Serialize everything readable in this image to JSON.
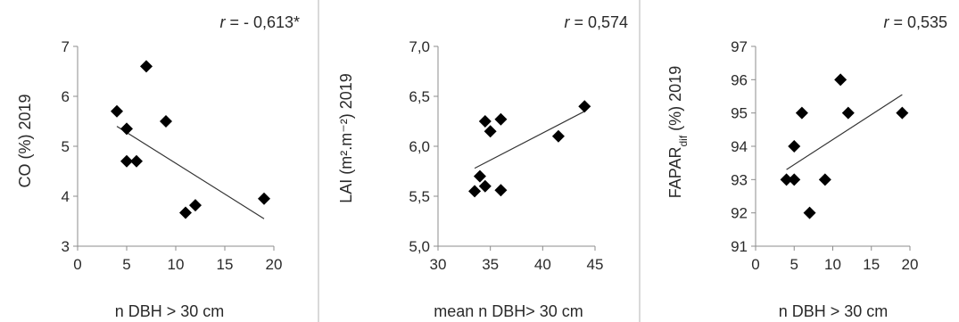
{
  "chart_data": [
    {
      "type": "scatter",
      "ylabel": "CO (%) 2019",
      "xlabel": "n DBH > 30 cm",
      "r_prefix": "r",
      "r_value": " = - 0,613*",
      "xlim": [
        0,
        20
      ],
      "ylim": [
        3,
        7
      ],
      "xticks": [
        0,
        5,
        10,
        15,
        20
      ],
      "xtick_labels": [
        "0",
        "5",
        "10",
        "15",
        "20"
      ],
      "yticks": [
        3,
        4,
        5,
        6,
        7
      ],
      "ytick_labels": [
        "3",
        "4",
        "5",
        "6",
        "7"
      ],
      "points": [
        {
          "x": 4,
          "y": 5.7
        },
        {
          "x": 5,
          "y": 5.35
        },
        {
          "x": 5,
          "y": 4.7
        },
        {
          "x": 6,
          "y": 4.7
        },
        {
          "x": 7,
          "y": 6.6
        },
        {
          "x": 9,
          "y": 5.5
        },
        {
          "x": 11,
          "y": 3.67
        },
        {
          "x": 12,
          "y": 3.82
        },
        {
          "x": 19,
          "y": 3.95
        }
      ],
      "trendline": {
        "x": [
          4,
          19
        ],
        "y": [
          5.4,
          3.55
        ]
      }
    },
    {
      "type": "scatter",
      "ylabel": "LAI (m².m⁻²) 2019",
      "xlabel": "mean n DBH> 30 cm",
      "r_prefix": "r",
      "r_value": " = 0,574",
      "xlim": [
        30,
        45
      ],
      "ylim": [
        5.0,
        7.0
      ],
      "xticks": [
        30,
        35,
        40,
        45
      ],
      "xtick_labels": [
        "30",
        "35",
        "40",
        "45"
      ],
      "yticks": [
        5.0,
        5.5,
        6.0,
        6.5,
        7.0
      ],
      "ytick_labels": [
        "5,0",
        "5,5",
        "6,0",
        "6,5",
        "7,0"
      ],
      "points": [
        {
          "x": 33.5,
          "y": 5.55
        },
        {
          "x": 34,
          "y": 5.7
        },
        {
          "x": 34.5,
          "y": 5.6
        },
        {
          "x": 34.5,
          "y": 6.25
        },
        {
          "x": 35,
          "y": 6.15
        },
        {
          "x": 36,
          "y": 6.27
        },
        {
          "x": 36,
          "y": 5.56
        },
        {
          "x": 41.5,
          "y": 6.1
        },
        {
          "x": 44,
          "y": 6.4
        }
      ],
      "trendline": {
        "x": [
          33.5,
          44
        ],
        "y": [
          5.78,
          6.35
        ]
      }
    },
    {
      "type": "scatter",
      "ylabel_main": "FAPAR",
      "ylabel_sub": "dif",
      "ylabel_rest": " (%) 2019",
      "xlabel": "n DBH > 30 cm",
      "r_prefix": "r",
      "r_value": " = 0,535",
      "xlim": [
        0,
        20
      ],
      "ylim": [
        91,
        97
      ],
      "xticks": [
        0,
        5,
        10,
        15,
        20
      ],
      "xtick_labels": [
        "0",
        "5",
        "10",
        "15",
        "20"
      ],
      "yticks": [
        91,
        92,
        93,
        94,
        95,
        96,
        97
      ],
      "ytick_labels": [
        "91",
        "92",
        "93",
        "94",
        "95",
        "96",
        "97"
      ],
      "points": [
        {
          "x": 4,
          "y": 93
        },
        {
          "x": 5,
          "y": 93
        },
        {
          "x": 5,
          "y": 94
        },
        {
          "x": 6,
          "y": 95
        },
        {
          "x": 7,
          "y": 92
        },
        {
          "x": 9,
          "y": 93
        },
        {
          "x": 11,
          "y": 96
        },
        {
          "x": 12,
          "y": 95
        },
        {
          "x": 19,
          "y": 95
        }
      ],
      "trendline": {
        "x": [
          4,
          19
        ],
        "y": [
          93.3,
          95.55
        ]
      }
    }
  ]
}
